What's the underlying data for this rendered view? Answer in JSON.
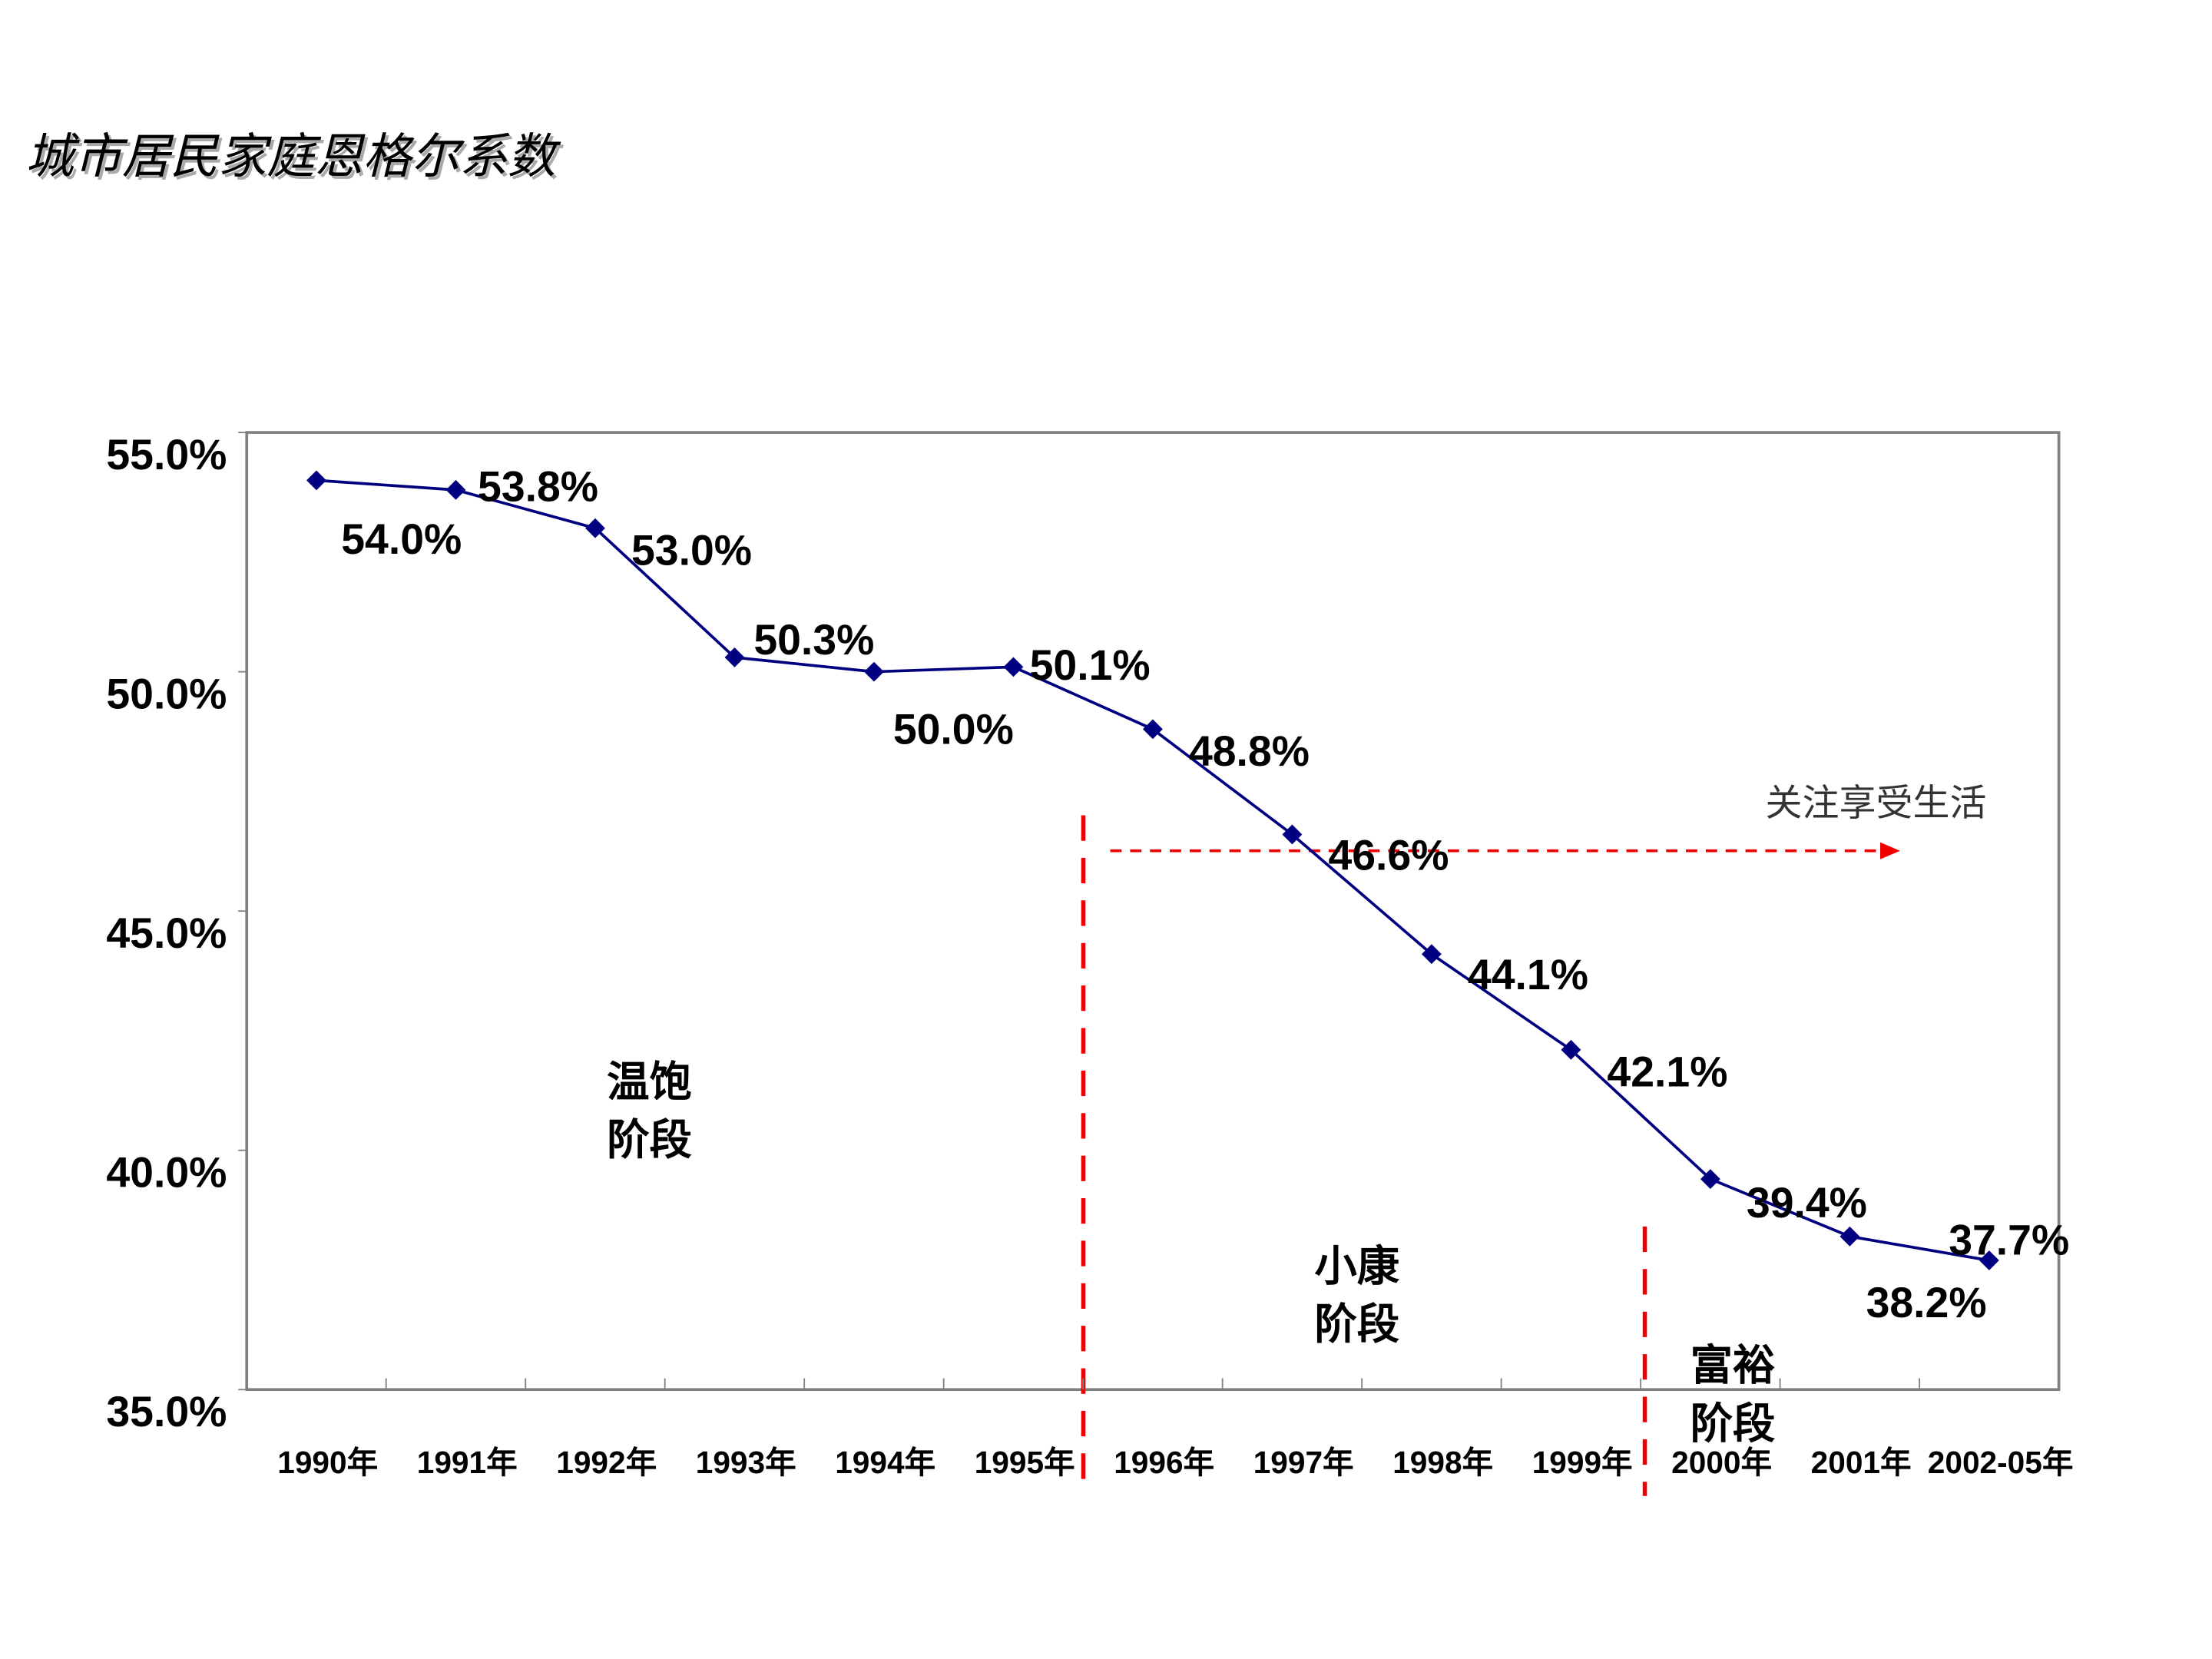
{
  "chart_data": {
    "type": "line",
    "title": "城市居民家庭恩格尔系数",
    "categories": [
      "1990年",
      "1991年",
      "1992年",
      "1993年",
      "1994年",
      "1995年",
      "1996年",
      "1997年",
      "1998年",
      "1999年",
      "2000年",
      "2001年",
      "2002-05年"
    ],
    "series": [
      {
        "color": "#000080",
        "values": [
          54.0,
          53.8,
          53.0,
          50.3,
          50.0,
          50.1,
          48.8,
          46.6,
          44.1,
          42.1,
          39.4,
          38.2,
          37.7
        ],
        "value_labels": [
          "54.0%",
          "53.8%",
          "53.0%",
          "50.3%",
          "50.0%",
          "50.1%",
          "48.8%",
          "46.6%",
          "44.1%",
          "42.1%",
          "39.4%",
          "38.2%",
          "37.7%"
        ]
      }
    ],
    "ylim": [
      35,
      55
    ],
    "yticks": [
      {
        "value": 35,
        "label": "35.0%"
      },
      {
        "value": 40,
        "label": "40.0%"
      },
      {
        "value": 45,
        "label": "45.0%"
      },
      {
        "value": 50,
        "label": "50.0%"
      },
      {
        "value": 55,
        "label": "55.0%"
      }
    ],
    "grid": false,
    "annotations": {
      "arrow_text": "关注享受生活",
      "stages": [
        {
          "lines": [
            "温饱",
            "阶段"
          ]
        },
        {
          "lines": [
            "小康",
            "阶段"
          ]
        },
        {
          "lines": [
            "富裕",
            "阶段"
          ]
        }
      ]
    }
  }
}
